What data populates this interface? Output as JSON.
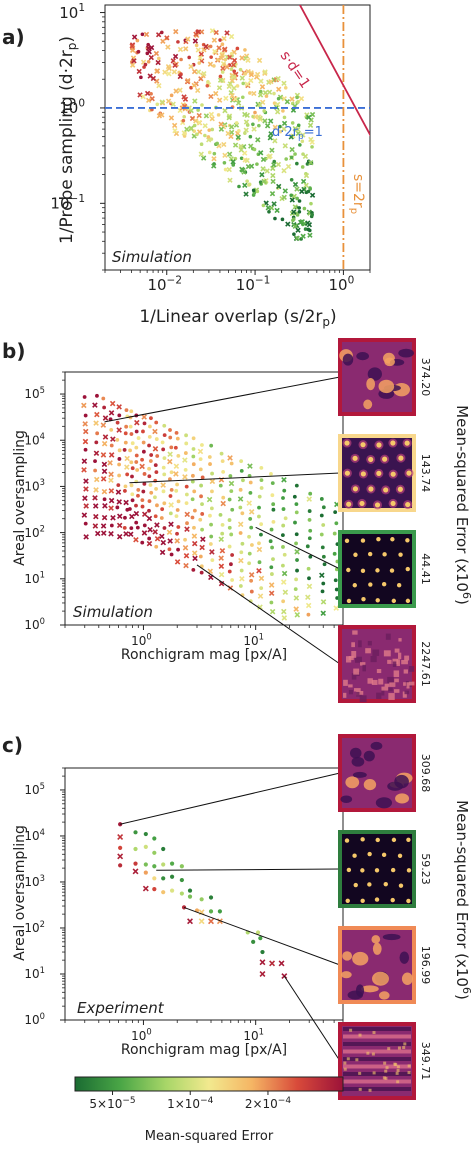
{
  "panels": {
    "a": {
      "letter": "a)"
    },
    "b": {
      "letter": "b)"
    },
    "c": {
      "letter": "c)"
    }
  },
  "colors": {
    "mse_colormap": [
      "#1a6b32",
      "#4aa646",
      "#a8d668",
      "#f2e98e",
      "#f5b564",
      "#d84a3a",
      "#9c1239"
    ],
    "probe_line": "#3b6fd6",
    "sd_line": "#c8264a",
    "s_line": "#e8913a",
    "axes": "#222222"
  },
  "chart_data": [
    {
      "id": "a",
      "type": "scatter",
      "xlabel": "1/Linear overlap (s/2r",
      "xlabel_sub": "p",
      "xlabel_tail": ")",
      "ylabel": "1/Probe sampling (d·2r",
      "ylabel_sub": "p",
      "ylabel_tail": ")",
      "xscale": "log",
      "yscale": "log",
      "xlim": [
        0.002,
        2
      ],
      "ylim": [
        0.02,
        12
      ],
      "xticks": [
        {
          "v": 0.01,
          "base": "10",
          "exp": "−2"
        },
        {
          "v": 0.1,
          "base": "10",
          "exp": "−1"
        },
        {
          "v": 1,
          "base": "10",
          "exp": "0"
        }
      ],
      "yticks": [
        {
          "v": 0.1,
          "base": "10",
          "exp": "−1"
        },
        {
          "v": 1,
          "base": "10",
          "exp": "0"
        },
        {
          "v": 10,
          "base": "10",
          "exp": "1"
        }
      ],
      "annotation": "Simulation",
      "lines": [
        {
          "label": "s·d=1",
          "kind": "sd",
          "style": "solid"
        },
        {
          "label": "d·2r",
          "label_sub": "p",
          "label_tail": "=1",
          "kind": "horizontal",
          "value": 1,
          "style": "dashed"
        },
        {
          "label": "s=2r",
          "label_sub": "p",
          "kind": "vertical",
          "value": 1,
          "style": "dashdot"
        }
      ],
      "points": {
        "x_range": [
          0.004,
          0.45
        ],
        "y_range": [
          0.04,
          6.5
        ],
        "count": 640
      }
    },
    {
      "id": "b",
      "type": "scatter",
      "xlabel": "Ronchigram mag [px/A]",
      "ylabel": "Areal oversampling",
      "xscale": "log",
      "yscale": "log",
      "xlim": [
        0.2,
        60
      ],
      "ylim": [
        1,
        300000
      ],
      "xticks": [
        {
          "v": 1,
          "base": "10",
          "exp": "0"
        },
        {
          "v": 10,
          "base": "10",
          "exp": "1"
        }
      ],
      "yticks": [
        {
          "v": 1,
          "base": "10",
          "exp": "0"
        },
        {
          "v": 10,
          "base": "10",
          "exp": "1"
        },
        {
          "v": 100,
          "base": "10",
          "exp": "2"
        },
        {
          "v": 1000,
          "base": "10",
          "exp": "3"
        },
        {
          "v": 10000,
          "base": "10",
          "exp": "4"
        },
        {
          "v": 100000,
          "base": "10",
          "exp": "5"
        }
      ],
      "annotation": "Simulation",
      "insets_title": "Mean-squared Error (x10",
      "insets_title_exp": "6",
      "insets_title_tail": ")",
      "insets": [
        {
          "value": "374.20",
          "border": "#b2183b",
          "kind": "blobs",
          "point": [
            0.45,
            25000
          ]
        },
        {
          "value": "143.74",
          "border": "#f8d78c",
          "kind": "dots-warm",
          "point": [
            0.75,
            1200
          ]
        },
        {
          "value": "44.41",
          "border": "#3a9a4c",
          "kind": "dots-dark",
          "point": [
            10,
            130
          ]
        },
        {
          "value": "2247.61",
          "border": "#b2183b",
          "kind": "noise",
          "point": [
            3,
            20
          ]
        }
      ]
    },
    {
      "id": "c",
      "type": "scatter",
      "xlabel": "Ronchigram mag [px/A]",
      "ylabel": "Areal oversampling",
      "xscale": "log",
      "yscale": "log",
      "xlim": [
        0.2,
        60
      ],
      "ylim": [
        1,
        300000
      ],
      "xticks": [
        {
          "v": 1,
          "base": "10",
          "exp": "0"
        },
        {
          "v": 10,
          "base": "10",
          "exp": "1"
        }
      ],
      "yticks": [
        {
          "v": 1,
          "base": "10",
          "exp": "0"
        },
        {
          "v": 10,
          "base": "10",
          "exp": "1"
        },
        {
          "v": 100,
          "base": "10",
          "exp": "2"
        },
        {
          "v": 1000,
          "base": "10",
          "exp": "3"
        },
        {
          "v": 10000,
          "base": "10",
          "exp": "4"
        },
        {
          "v": 100000,
          "base": "10",
          "exp": "5"
        }
      ],
      "annotation": "Experiment",
      "insets_title": "Mean-squared Error (x10",
      "insets_title_exp": "6",
      "insets_title_tail": ")",
      "insets": [
        {
          "value": "309.68",
          "border": "#b2183b",
          "kind": "blobs",
          "point": [
            0.62,
            18000
          ]
        },
        {
          "value": "59.23",
          "border": "#2e7d3e",
          "kind": "dots-dark",
          "point": [
            1.3,
            1800
          ]
        },
        {
          "value": "196.99",
          "border": "#f08a56",
          "kind": "blobs",
          "point": [
            2.3,
            280
          ]
        },
        {
          "value": "349.71",
          "border": "#b2183b",
          "kind": "stripes",
          "point": [
            18,
            9
          ]
        }
      ],
      "points": [
        {
          "x": 0.62,
          "y": 18000,
          "m": 0.98,
          "mk": "o"
        },
        {
          "x": 0.62,
          "y": 9500,
          "m": 0.9,
          "mk": "x"
        },
        {
          "x": 0.62,
          "y": 5500,
          "m": 0.85,
          "mk": "o"
        },
        {
          "x": 0.62,
          "y": 3600,
          "m": 0.95,
          "mk": "x"
        },
        {
          "x": 0.62,
          "y": 2300,
          "m": 0.92,
          "mk": "o"
        },
        {
          "x": 0.85,
          "y": 12000,
          "m": 0.12,
          "mk": "o"
        },
        {
          "x": 0.85,
          "y": 5200,
          "m": 0.35,
          "mk": "o"
        },
        {
          "x": 0.85,
          "y": 2500,
          "m": 0.88,
          "mk": "o"
        },
        {
          "x": 0.85,
          "y": 1700,
          "m": 0.96,
          "mk": "x"
        },
        {
          "x": 1.05,
          "y": 11000,
          "m": 0.08,
          "mk": "o"
        },
        {
          "x": 1.05,
          "y": 5800,
          "m": 0.42,
          "mk": "o"
        },
        {
          "x": 1.05,
          "y": 2400,
          "m": 0.25,
          "mk": "o"
        },
        {
          "x": 1.05,
          "y": 1600,
          "m": 0.7,
          "mk": "o"
        },
        {
          "x": 1.05,
          "y": 720,
          "m": 0.95,
          "mk": "x"
        },
        {
          "x": 1.25,
          "y": 8800,
          "m": 0.15,
          "mk": "o"
        },
        {
          "x": 1.25,
          "y": 4300,
          "m": 0.3,
          "mk": "o"
        },
        {
          "x": 1.25,
          "y": 2200,
          "m": 0.2,
          "mk": "o"
        },
        {
          "x": 1.25,
          "y": 1200,
          "m": 0.55,
          "mk": "o"
        },
        {
          "x": 1.25,
          "y": 700,
          "m": 0.85,
          "mk": "o"
        },
        {
          "x": 1.5,
          "y": 5200,
          "m": 0.05,
          "mk": "o"
        },
        {
          "x": 1.5,
          "y": 2400,
          "m": 0.38,
          "mk": "o"
        },
        {
          "x": 1.5,
          "y": 1200,
          "m": 0.1,
          "mk": "o"
        },
        {
          "x": 1.5,
          "y": 600,
          "m": 0.62,
          "mk": "o"
        },
        {
          "x": 1.8,
          "y": 2500,
          "m": 0.18,
          "mk": "o"
        },
        {
          "x": 1.8,
          "y": 1300,
          "m": 0.08,
          "mk": "o"
        },
        {
          "x": 1.8,
          "y": 650,
          "m": 0.45,
          "mk": "o"
        },
        {
          "x": 2.2,
          "y": 2200,
          "m": 0.28,
          "mk": "o"
        },
        {
          "x": 2.2,
          "y": 1100,
          "m": 0.12,
          "mk": "o"
        },
        {
          "x": 2.2,
          "y": 560,
          "m": 0.35,
          "mk": "o"
        },
        {
          "x": 2.3,
          "y": 280,
          "m": 0.93,
          "mk": "o"
        },
        {
          "x": 2.6,
          "y": 480,
          "m": 0.25,
          "mk": "o"
        },
        {
          "x": 2.6,
          "y": 140,
          "m": 0.97,
          "mk": "x"
        },
        {
          "x": 2.6,
          "y": 650,
          "m": 0.05,
          "mk": "o"
        },
        {
          "x": 3.0,
          "y": 240,
          "m": 0.68,
          "mk": "o"
        },
        {
          "x": 3.3,
          "y": 420,
          "m": 0.3,
          "mk": "o"
        },
        {
          "x": 3.3,
          "y": 220,
          "m": 0.6,
          "mk": "x"
        },
        {
          "x": 3.3,
          "y": 140,
          "m": 0.55,
          "mk": "x"
        },
        {
          "x": 4.0,
          "y": 460,
          "m": 0.06,
          "mk": "o"
        },
        {
          "x": 4.0,
          "y": 230,
          "m": 0.2,
          "mk": "o"
        },
        {
          "x": 4.0,
          "y": 140,
          "m": 0.78,
          "mk": "x"
        },
        {
          "x": 4.8,
          "y": 230,
          "m": 0.14,
          "mk": "o"
        },
        {
          "x": 4.8,
          "y": 140,
          "m": 0.72,
          "mk": "x"
        },
        {
          "x": 8.5,
          "y": 80,
          "m": 0.35,
          "mk": "o"
        },
        {
          "x": 9.5,
          "y": 50,
          "m": 0.1,
          "mk": "o"
        },
        {
          "x": 10.5,
          "y": 80,
          "m": 0.4,
          "mk": "o"
        },
        {
          "x": 11.0,
          "y": 60,
          "m": 0.15,
          "mk": "o"
        },
        {
          "x": 11.5,
          "y": 30,
          "m": 0.05,
          "mk": "o"
        },
        {
          "x": 11.5,
          "y": 18,
          "m": 0.97,
          "mk": "x"
        },
        {
          "x": 11.5,
          "y": 10,
          "m": 0.96,
          "mk": "x"
        },
        {
          "x": 14.0,
          "y": 17,
          "m": 0.93,
          "mk": "x"
        },
        {
          "x": 17.0,
          "y": 17,
          "m": 0.97,
          "mk": "x"
        },
        {
          "x": 18.0,
          "y": 9,
          "m": 0.98,
          "mk": "x"
        }
      ]
    }
  ],
  "colorbar": {
    "label": "Mean-squared Error",
    "ticks": [
      {
        "pos": 0.14,
        "mant": "5×10",
        "exp": "−5"
      },
      {
        "pos": 0.43,
        "mant": "1×10",
        "exp": "−4"
      },
      {
        "pos": 0.72,
        "mant": "2×10",
        "exp": "−4"
      }
    ]
  }
}
